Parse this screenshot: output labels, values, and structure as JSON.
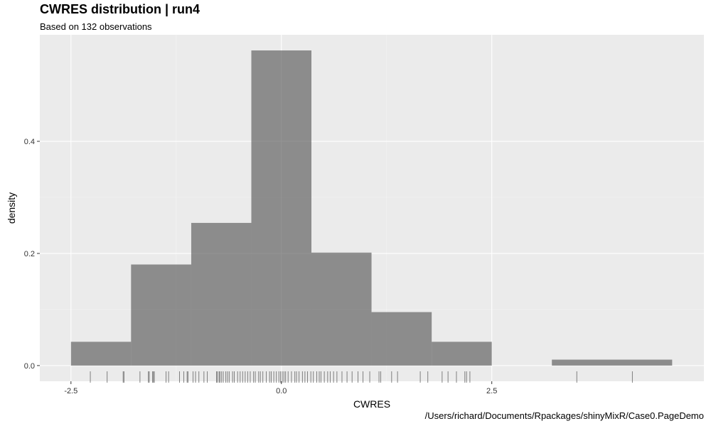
{
  "chart_data": {
    "type": "bar",
    "title": "CWRES distribution | run4",
    "subtitle": "Based on 132 observations",
    "caption": "/Users/richard/Documents/Rpackages/shinyMixR/Case0.PageDemo",
    "xlabel": "CWRES",
    "ylabel": "density",
    "xlim": [
      -2.87,
      5.02
    ],
    "ylim": [
      -0.028,
      0.59
    ],
    "x_ticks": [
      -2.5,
      0.0,
      2.5
    ],
    "x_tick_labels": [
      "-2.5",
      "0.0",
      "2.5"
    ],
    "y_ticks": [
      0.0,
      0.2,
      0.4
    ],
    "y_tick_labels": [
      "0.0",
      "0.2",
      "0.4"
    ],
    "grid": true,
    "bins": [
      {
        "x0": -2.5,
        "x1": -1.786,
        "density": 0.0424
      },
      {
        "x0": -1.786,
        "x1": -1.071,
        "density": 0.1803
      },
      {
        "x0": -1.071,
        "x1": -0.357,
        "density": 0.2545
      },
      {
        "x0": -0.357,
        "x1": 0.357,
        "density": 0.5621
      },
      {
        "x0": 0.357,
        "x1": 1.071,
        "density": 0.2015
      },
      {
        "x0": 1.071,
        "x1": 1.786,
        "density": 0.0954
      },
      {
        "x0": 1.786,
        "x1": 2.5,
        "density": 0.0424
      },
      {
        "x0": 2.5,
        "x1": 3.214,
        "density": 0.0
      },
      {
        "x0": 3.214,
        "x1": 4.643,
        "density": 0.0106
      }
    ],
    "rug_x": [
      -2.27,
      -2.07,
      -1.88,
      -1.87,
      -1.68,
      -1.58,
      -1.57,
      -1.53,
      -1.52,
      -1.51,
      -1.37,
      -1.34,
      -1.21,
      -1.16,
      -1.12,
      -1.11,
      -1.05,
      -1.02,
      -0.98,
      -0.92,
      -0.88,
      -0.77,
      -0.76,
      -0.74,
      -0.73,
      -0.71,
      -0.69,
      -0.66,
      -0.64,
      -0.62,
      -0.58,
      -0.56,
      -0.52,
      -0.49,
      -0.46,
      -0.43,
      -0.4,
      -0.37,
      -0.33,
      -0.31,
      -0.27,
      -0.25,
      -0.22,
      -0.18,
      -0.14,
      -0.12,
      -0.09,
      -0.06,
      -0.03,
      -0.01,
      0.01,
      0.03,
      0.05,
      0.08,
      0.12,
      0.16,
      0.18,
      0.21,
      0.25,
      0.28,
      0.31,
      0.35,
      0.38,
      0.42,
      0.45,
      0.47,
      0.51,
      0.55,
      0.58,
      0.62,
      0.66,
      0.72,
      0.78,
      0.84,
      0.91,
      0.97,
      1.05,
      1.16,
      1.18,
      1.31,
      1.38,
      1.65,
      1.74,
      1.91,
      1.98,
      2.08,
      2.18,
      2.2,
      2.24,
      3.51,
      4.17
    ]
  }
}
